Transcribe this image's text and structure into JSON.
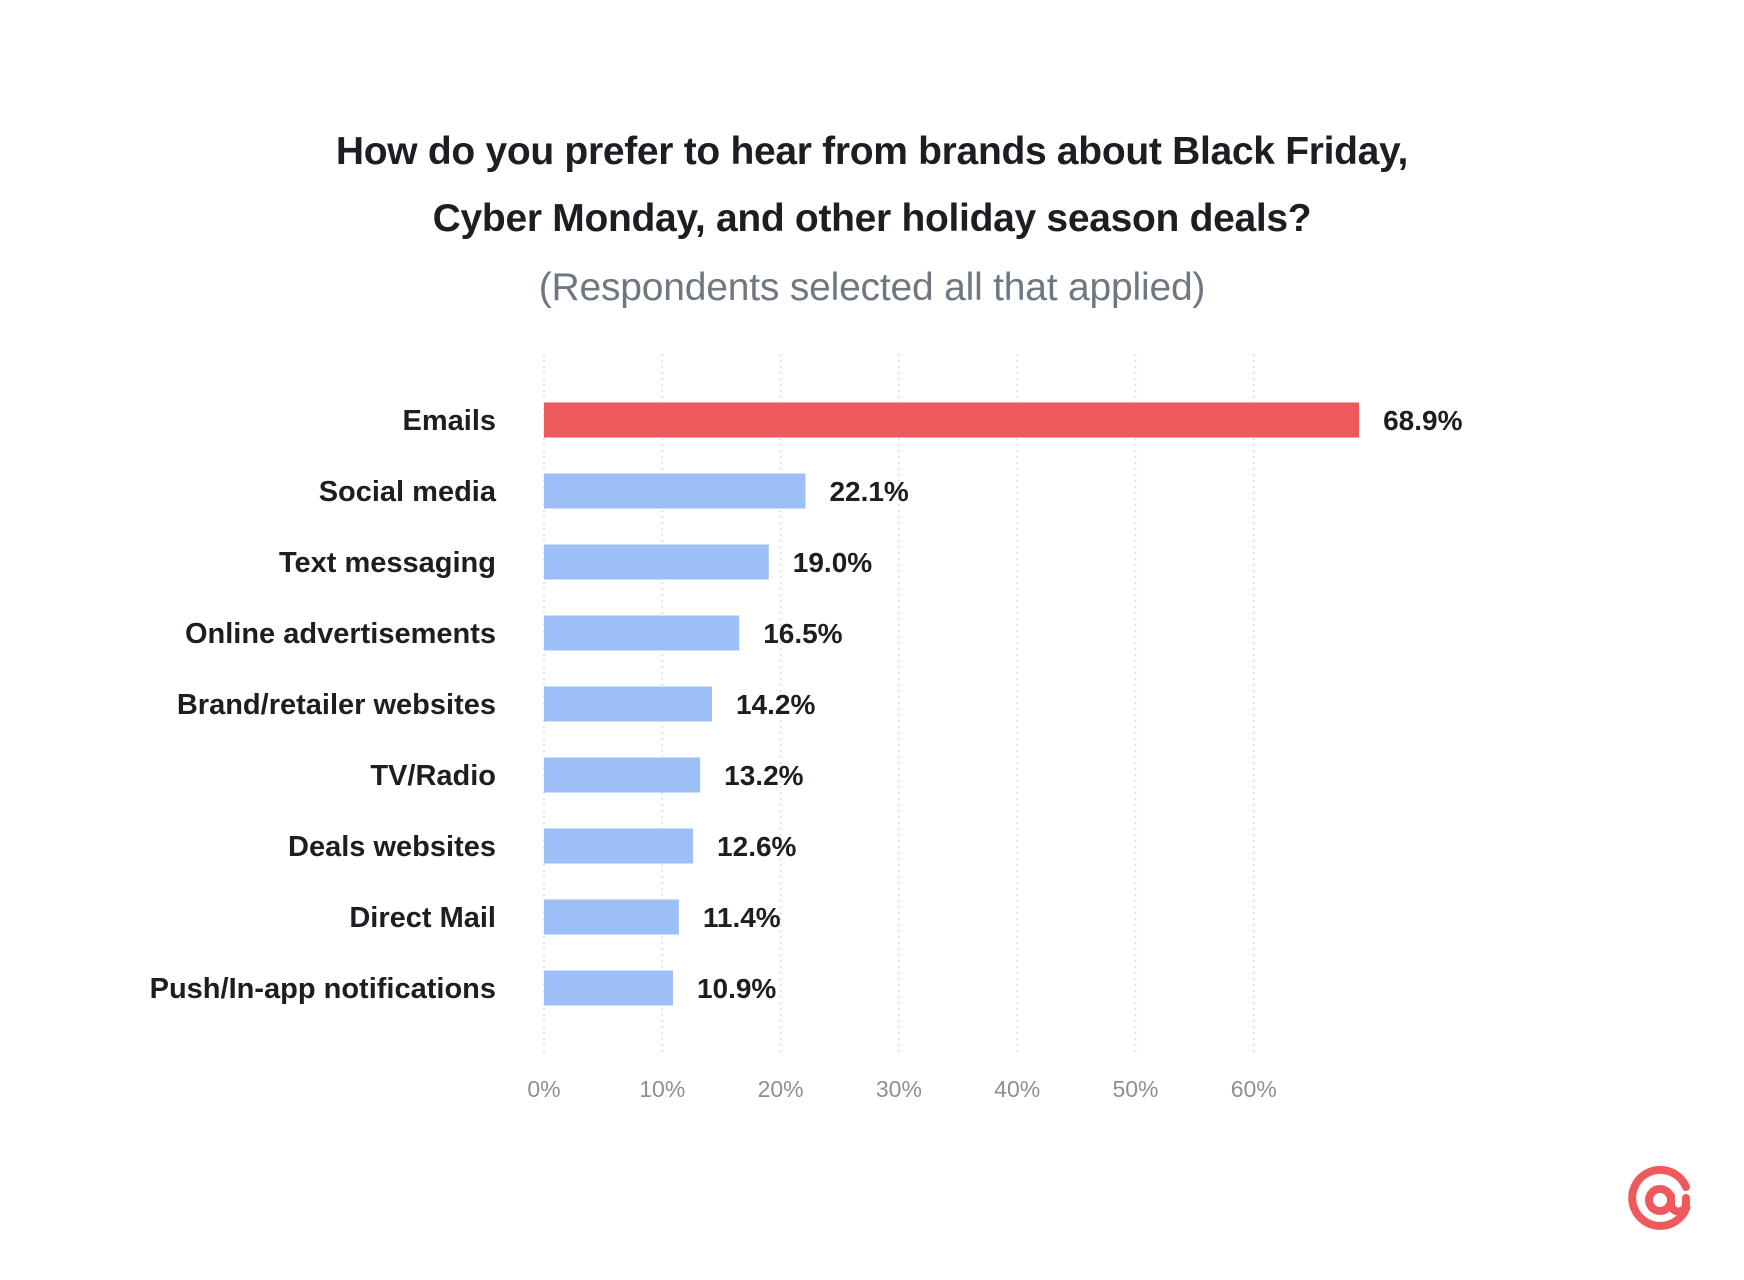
{
  "chart": {
    "title_line_1": "How do you prefer to hear from brands about Black Friday,",
    "title_line_2": "Cyber Monday, and other holiday season deals?",
    "subtitle": "(Respondents selected all that applied)"
  },
  "chart_data": {
    "type": "bar",
    "orientation": "horizontal",
    "title": "How do you prefer to hear from brands about Black Friday, Cyber Monday, and other holiday season deals?",
    "subtitle": "(Respondents selected all that applied)",
    "categories": [
      "Emails",
      "Social media",
      "Text messaging",
      "Online advertisements",
      "Brand/retailer websites",
      "TV/Radio",
      "Deals websites",
      "Direct Mail",
      "Push/In-app notifications"
    ],
    "values": [
      68.9,
      22.1,
      19.0,
      16.5,
      14.2,
      13.2,
      12.6,
      11.4,
      10.9
    ],
    "value_labels": [
      "68.9%",
      "22.1%",
      "19.0%",
      "16.5%",
      "14.2%",
      "13.2%",
      "12.6%",
      "11.4%",
      "10.9%"
    ],
    "xlabel": "",
    "ylabel": "",
    "xlim": [
      0,
      60
    ],
    "x_ticks": [
      0,
      10,
      20,
      30,
      40,
      50,
      60
    ],
    "x_tick_labels": [
      "0%",
      "10%",
      "20%",
      "30%",
      "40%",
      "50%",
      "60%"
    ],
    "grid": true,
    "grid_style": "dotted vertical",
    "legend": "none",
    "highlight_index": 0,
    "colors": {
      "highlight": "#ee5a5c",
      "bar": "#9dbff7",
      "gridline": "#d9dde2",
      "text": "#1b1f24",
      "tick_text": "#8a9099"
    }
  },
  "logo": {
    "icon": "at-sign-logo-icon",
    "color": "#ee5a5c"
  }
}
